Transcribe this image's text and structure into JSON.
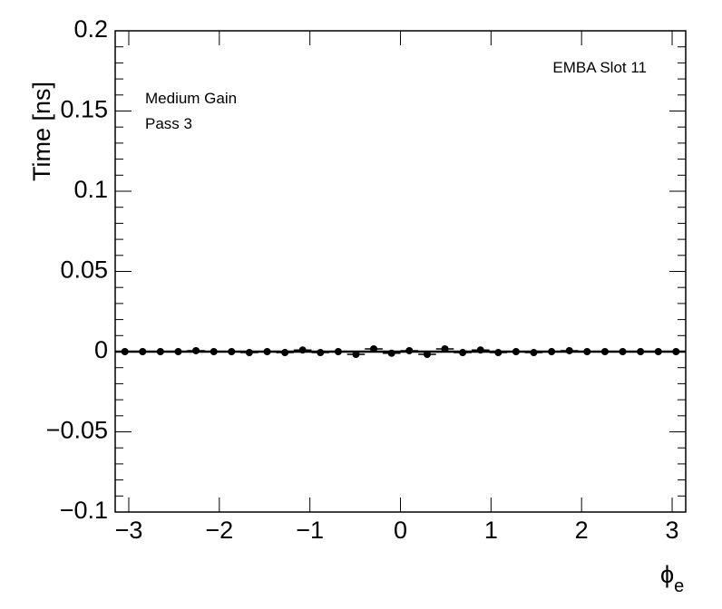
{
  "chart_data": {
    "type": "scatter",
    "ylabel": "Time [ns]",
    "xlabel": {
      "symbol": "ϕ",
      "subscript": "e"
    },
    "annotations": [
      "EMBA Slot 11",
      "Medium Gain",
      "Pass 3"
    ],
    "xlim": [
      -3.15,
      3.15
    ],
    "ylim": [
      -0.1,
      0.2
    ],
    "xticks": [
      {
        "value": -3,
        "label": "−3"
      },
      {
        "value": -2,
        "label": "−2"
      },
      {
        "value": -1,
        "label": "−1"
      },
      0,
      1,
      2,
      3
    ],
    "yticks": [
      {
        "value": -0.1,
        "label": "−0.1"
      },
      {
        "value": -0.05,
        "label": "−0.05"
      },
      0,
      0.05,
      0.1,
      0.15,
      0.2
    ],
    "minor_divisions": 5,
    "reference_line": 0,
    "color": "#000000",
    "x": [
      -3.043,
      -2.847,
      -2.651,
      -2.454,
      -2.258,
      -2.061,
      -1.865,
      -1.669,
      -1.472,
      -1.276,
      -1.08,
      -0.884,
      -0.687,
      -0.491,
      -0.295,
      -0.098,
      0.098,
      0.295,
      0.491,
      0.687,
      0.884,
      1.08,
      1.276,
      1.472,
      1.669,
      1.865,
      2.061,
      2.258,
      2.454,
      2.651,
      2.847,
      3.043
    ],
    "values": [
      0,
      0,
      0,
      0,
      0.0006,
      0,
      0,
      -0.0006,
      0,
      -0.0006,
      0.001,
      -0.0006,
      0,
      -0.0017,
      0.0017,
      -0.001,
      0.0006,
      -0.0017,
      0.0017,
      -0.0006,
      0.001,
      -0.0006,
      0,
      -0.0006,
      0,
      0.0006,
      0,
      0,
      0,
      0,
      0,
      0
    ]
  }
}
